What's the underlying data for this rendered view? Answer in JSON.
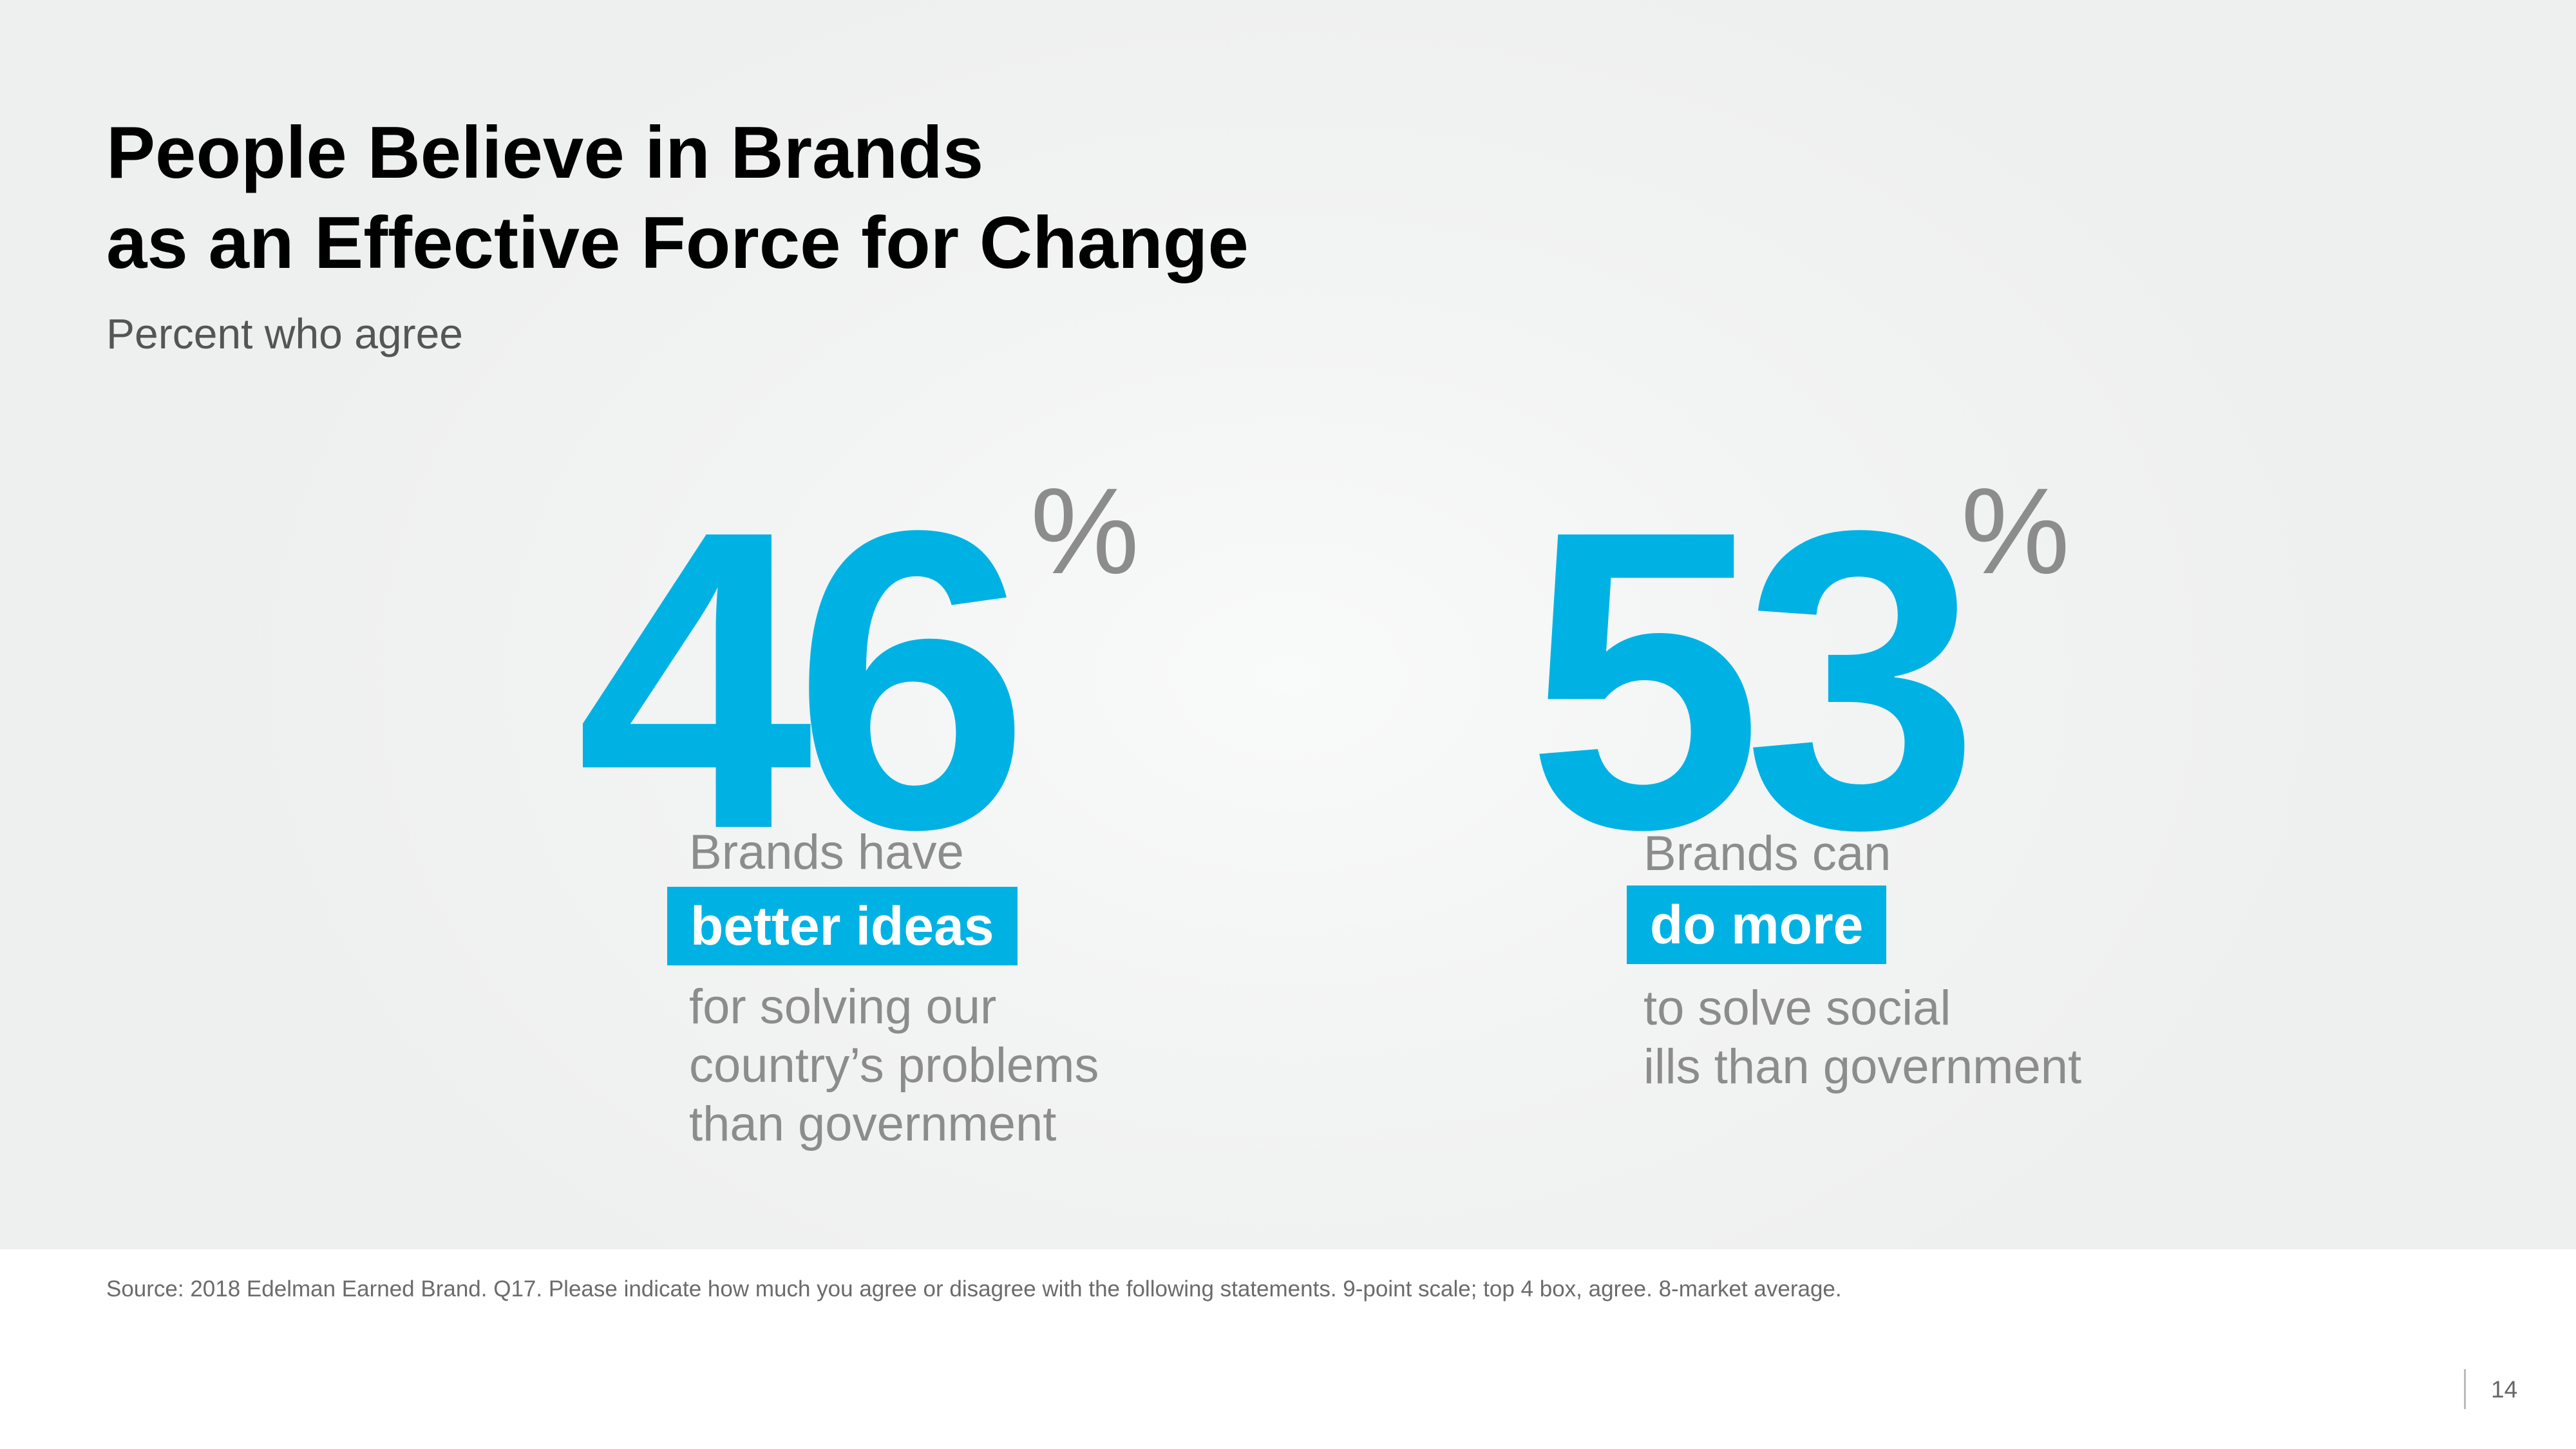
{
  "colors": {
    "accent": "#00b2e3",
    "muted_text": "#8c8c8c",
    "heading": "#000000",
    "subtitle": "#555555"
  },
  "title": {
    "line1": "People Believe in Brands",
    "line2": "as an Effective Force for Change"
  },
  "subtitle": "Percent who agree",
  "stats": [
    {
      "value": "46",
      "unit": "%",
      "lead": "Brands have",
      "highlight": "better ideas",
      "rest": [
        "for solving our",
        "country’s problems",
        "than government"
      ]
    },
    {
      "value": "53",
      "unit": "%",
      "lead": "Brands can",
      "highlight": "do more",
      "rest": [
        "to solve social",
        "ills than government"
      ]
    }
  ],
  "source": "Source: 2018 Edelman Earned Brand. Q17. Please indicate how much you agree or disagree with the following statements. 9-point scale; top 4 box, agree. 8-market average.",
  "page_number": "14"
}
